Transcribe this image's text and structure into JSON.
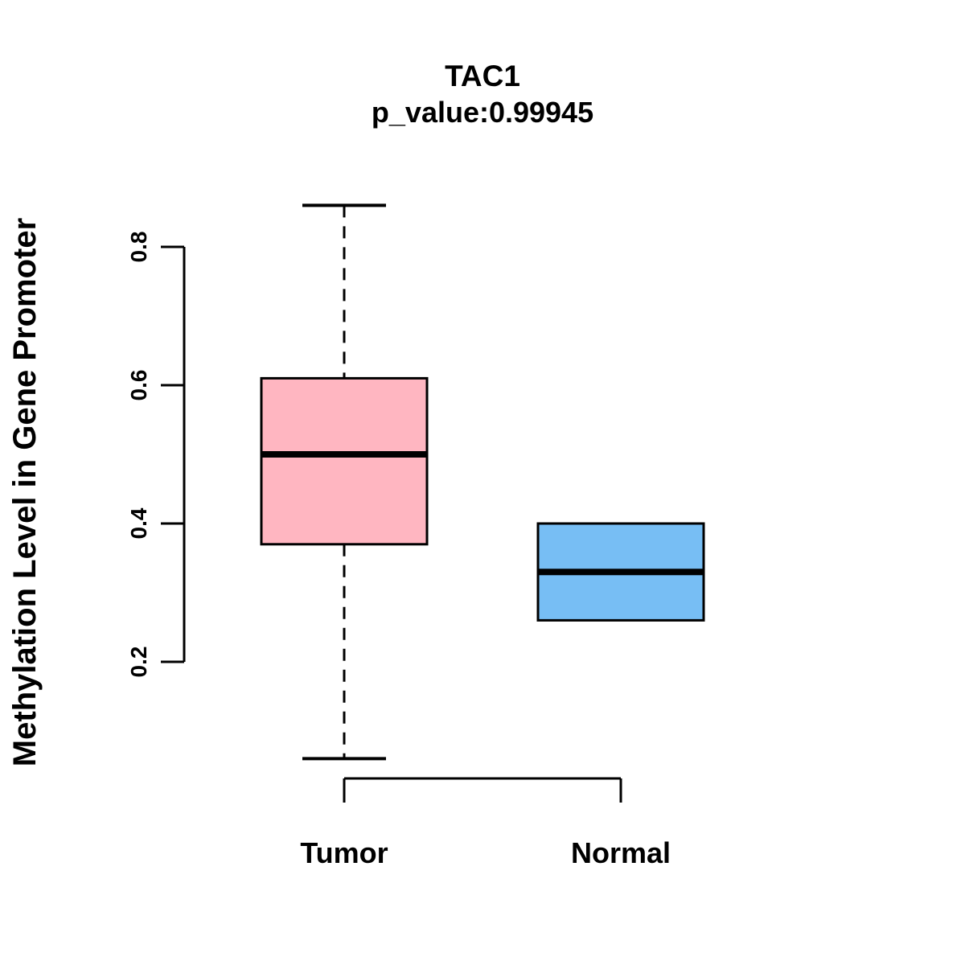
{
  "figure": {
    "title": "TAC1",
    "subtitle": "p_value:0.99945",
    "background_color": "#ffffff",
    "line_color": "#000000"
  },
  "chart_data": {
    "type": "boxplot",
    "title": "TAC1",
    "subtitle": "p_value:0.99945",
    "xlabel": "",
    "ylabel": "Methylation Level in Gene Promoter",
    "categories": [
      "Tumor",
      "Normal"
    ],
    "ytick_labels": [
      "0.2",
      "0.4",
      "0.6",
      "0.8"
    ],
    "ytick_values": [
      0.2,
      0.4,
      0.6,
      0.8
    ],
    "yaxis_drawn_range": [
      0.2,
      0.8
    ],
    "grid": false,
    "legend": "none",
    "series": [
      {
        "name": "Tumor",
        "box_color": "#FFB6C1",
        "whisker_low": 0.06,
        "q1": 0.37,
        "median": 0.5,
        "q3": 0.61,
        "whisker_high": 0.86,
        "whisker_line_style": "dashed",
        "outliers": []
      },
      {
        "name": "Normal",
        "box_color": "#77BEF4",
        "whisker_low": 0.26,
        "q1": 0.26,
        "median": 0.33,
        "q3": 0.4,
        "whisker_high": 0.4,
        "whisker_line_style": "dashed",
        "outliers": []
      }
    ]
  }
}
